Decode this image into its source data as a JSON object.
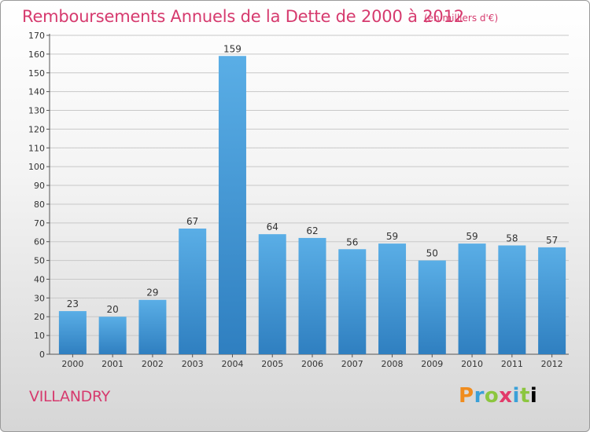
{
  "header": {
    "title": "Remboursements Annuels de la Dette de 2000 à 2012",
    "unit": "(en milliers d'€)"
  },
  "footer": {
    "city": "VILLANDRY",
    "brand": [
      "P",
      "r",
      "o",
      "x",
      "i",
      "t",
      "i"
    ]
  },
  "colors": {
    "accent": "#d63a6e",
    "bar_top": "#5aaee6",
    "bar_bottom": "#2f7fc0",
    "grid": "#c8c8c8"
  },
  "chart_data": {
    "type": "bar",
    "title": "Remboursements Annuels de la Dette de 2000 à 2012",
    "categories": [
      "2000",
      "2001",
      "2002",
      "2003",
      "2004",
      "2005",
      "2006",
      "2007",
      "2008",
      "2009",
      "2010",
      "2011",
      "2012"
    ],
    "values": [
      23,
      20,
      29,
      67,
      159,
      64,
      62,
      56,
      59,
      50,
      59,
      58,
      57
    ],
    "ylim": [
      0,
      170
    ],
    "yticks": [
      0,
      10,
      20,
      30,
      40,
      50,
      60,
      70,
      80,
      90,
      100,
      110,
      120,
      130,
      140,
      150,
      160,
      170
    ],
    "grid": true,
    "xlabel": "",
    "ylabel": ""
  }
}
